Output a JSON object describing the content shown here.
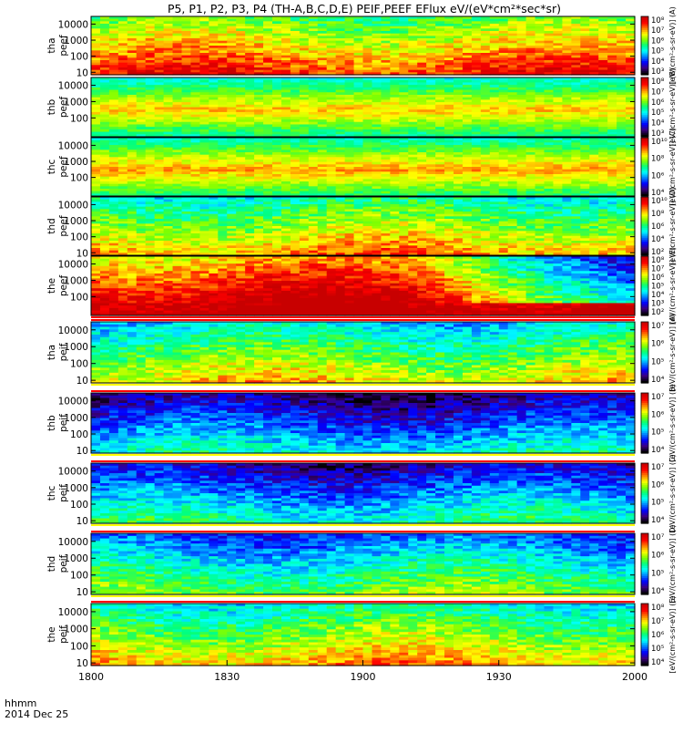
{
  "chart_data": {
    "type": "heatmap",
    "title": "P5, P1, P2, P3, P4 (TH-A,B,C,D,E) PEIF,PEEF EFlux eV/(eV*cm²*sec*sr)",
    "x_ticks": [
      "1800",
      "1830",
      "1900",
      "1930",
      "2000"
    ],
    "x_range": [
      "2014-12-25 18:00",
      "2014-12-25 20:00"
    ],
    "time_label": "hhmm",
    "date_label": "2014 Dec 25",
    "y_scale": "log",
    "y_range_eV": [
      7,
      30000
    ],
    "colormap": [
      "#000000",
      "#3c0080",
      "#0000ff",
      "#0080ff",
      "#00ffff",
      "#00ff80",
      "#80ff00",
      "#ffff00",
      "#ff8000",
      "#ff0000",
      "#c80000"
    ],
    "panels": [
      {
        "label1": "tha",
        "label2": "peef",
        "y_ticks": [
          "10",
          "100",
          "1000",
          "10000"
        ],
        "cbar_ticks": [
          "10³",
          "10⁴",
          "10⁵",
          "10⁶",
          "10⁷",
          "10⁸"
        ],
        "cbar_label": "[eV/(cm²-s-sr-eV)] (A)",
        "avg_level_0to1": 0.72
      },
      {
        "label1": "thb",
        "label2": "peef",
        "y_ticks": [
          "100",
          "1000",
          "10000"
        ],
        "cbar_ticks": [
          "10³",
          "10⁴",
          "10⁵",
          "10⁶",
          "10⁷",
          "10⁸"
        ],
        "cbar_label": "[eV/(cm²-s-sr-eV)] (B)",
        "avg_level_0to1": 0.45
      },
      {
        "label1": "thc",
        "label2": "peef",
        "y_ticks": [
          "100",
          "1000",
          "10000"
        ],
        "cbar_ticks": [
          "10⁴",
          "10⁶",
          "10⁸",
          "10¹⁰"
        ],
        "cbar_label": "[eV/(cm²-s-sr-eV)] (C)",
        "avg_level_0to1": 0.48
      },
      {
        "label1": "thd",
        "label2": "peef",
        "y_ticks": [
          "10",
          "100",
          "1000",
          "10000"
        ],
        "cbar_ticks": [
          "10²",
          "10⁴",
          "10⁶",
          "10⁸",
          "10¹⁰"
        ],
        "cbar_label": "[eV/(cm²-s-sr-eV)] (D)",
        "avg_level_0to1": 0.62
      },
      {
        "label1": "the",
        "label2": "peef",
        "y_ticks": [
          "100",
          "1000",
          "10000"
        ],
        "cbar_ticks": [
          "10²",
          "10³",
          "10⁴",
          "10⁵",
          "10⁶",
          "10⁷",
          "10⁸"
        ],
        "cbar_label": "[eV/(cm²-s-sr-eV)] (E)",
        "avg_level_0to1": 0.9
      },
      {
        "label1": "tha",
        "label2": "peif",
        "y_ticks": [
          "10",
          "100",
          "1000",
          "10000"
        ],
        "cbar_ticks": [
          "10⁴",
          "10⁵",
          "10⁶",
          "10⁷"
        ],
        "cbar_label": "[eV/(cm²-s-sr-eV)] (A)",
        "avg_level_0to1": 0.55
      },
      {
        "label1": "thb",
        "label2": "peif",
        "y_ticks": [
          "10",
          "100",
          "1000",
          "10000"
        ],
        "cbar_ticks": [
          "10⁴",
          "10⁵",
          "10⁶",
          "10⁷"
        ],
        "cbar_label": "[eV/(cm²-s-sr-eV)] (B)",
        "avg_level_0to1": 0.25
      },
      {
        "label1": "thc",
        "label2": "peif",
        "y_ticks": [
          "10",
          "100",
          "1000",
          "10000"
        ],
        "cbar_ticks": [
          "10⁴",
          "10⁵",
          "10⁶",
          "10⁷"
        ],
        "cbar_label": "[eV/(cm²-s-sr-eV)] (C)",
        "avg_level_0to1": 0.3
      },
      {
        "label1": "thd",
        "label2": "peif",
        "y_ticks": [
          "10",
          "100",
          "1000",
          "10000"
        ],
        "cbar_ticks": [
          "10⁴",
          "10⁵",
          "10⁶",
          "10⁷"
        ],
        "cbar_label": "[eV/(cm²-s-sr-eV)] (D)",
        "avg_level_0to1": 0.42
      },
      {
        "label1": "the",
        "label2": "peif",
        "y_ticks": [
          "10",
          "100",
          "1000",
          "10000"
        ],
        "cbar_ticks": [
          "10⁴",
          "10⁵",
          "10⁶",
          "10⁷",
          "10⁸"
        ],
        "cbar_label": "[eV/(cm²-s-sr-eV)] (E)",
        "avg_level_0to1": 0.6
      }
    ]
  }
}
